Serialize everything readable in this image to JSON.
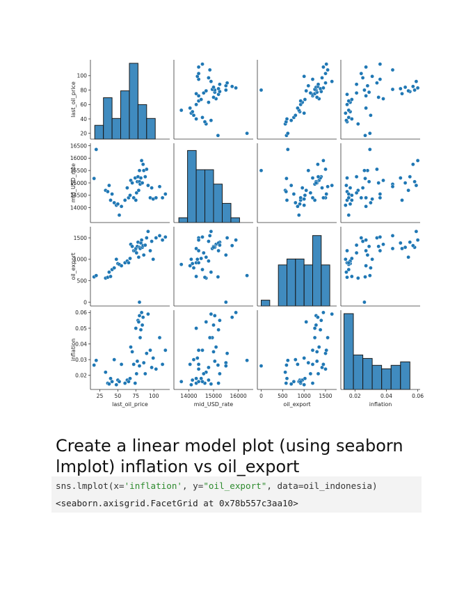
{
  "chart_data": {
    "type": "scatter",
    "variables": [
      "last_oil_price",
      "mid_USD_rate",
      "oil_export",
      "inflation"
    ],
    "axes": {
      "last_oil_price": {
        "range": [
          12,
          122
        ],
        "ticks": [
          20,
          40,
          60,
          80,
          100
        ],
        "bottom_ticks": [
          25,
          50,
          75,
          100
        ]
      },
      "mid_USD_rate": {
        "range": [
          13400,
          16600
        ],
        "ticks": [
          14000,
          14500,
          15000,
          15500,
          16000,
          16500
        ],
        "bottom_ticks": [
          14000,
          15000,
          16000
        ]
      },
      "oil_export": {
        "range": [
          -90,
          1760
        ],
        "ticks": [
          0,
          500,
          1000,
          1500
        ],
        "bottom_ticks": [
          0,
          500,
          1000,
          1500
        ]
      },
      "inflation": {
        "range": [
          0.011,
          0.0615
        ],
        "ticks": [
          0.02,
          0.03,
          0.04,
          0.05,
          0.06
        ],
        "bottom_ticks": [
          0.02,
          0.04,
          0.06
        ]
      }
    },
    "histograms": {
      "last_oil_price": {
        "edges": [
          18,
          30,
          42,
          54,
          66,
          78,
          90,
          102,
          114
        ],
        "counts": [
          2,
          6,
          3,
          7,
          11,
          5,
          3,
          0
        ],
        "ylim": [
          0,
          11.5
        ]
      },
      "mid_USD_rate": {
        "edges": [
          13600,
          13950,
          14300,
          14650,
          15000,
          15350,
          15700,
          16050,
          16400
        ],
        "counts": [
          1,
          15,
          11,
          11,
          8,
          4,
          1,
          0
        ],
        "ylim": [
          0,
          16.5
        ]
      },
      "oil_export": {
        "edges": [
          0,
          200,
          400,
          600,
          800,
          1000,
          1200,
          1400,
          1600
        ],
        "counts": [
          1,
          0,
          7,
          8,
          8,
          7,
          12,
          7
        ],
        "ylim": [
          0,
          13.5
        ]
      },
      "inflation": {
        "edges": [
          0.013,
          0.019,
          0.025,
          0.031,
          0.037,
          0.043,
          0.049,
          0.055,
          0.061
        ],
        "counts": [
          11,
          5,
          4.5,
          3.5,
          3,
          3.5,
          4,
          0
        ],
        "ylim": [
          0,
          11.5
        ]
      }
    },
    "points": [
      [
        17,
        15180,
        590,
        0.0265
      ],
      [
        20,
        16350,
        620,
        0.0295
      ],
      [
        33,
        14700,
        560,
        0.022
      ],
      [
        36,
        14650,
        580,
        0.015
      ],
      [
        38,
        14900,
        700,
        0.0145
      ],
      [
        40,
        14300,
        600,
        0.018
      ],
      [
        42,
        14550,
        760,
        0.016
      ],
      [
        45,
        14200,
        800,
        0.03
      ],
      [
        48,
        14100,
        1000,
        0.014
      ],
      [
        50,
        14150,
        900,
        0.017
      ],
      [
        52,
        13700,
        880,
        0.016
      ],
      [
        55,
        14050,
        850,
        0.027
      ],
      [
        60,
        14300,
        920,
        0.015
      ],
      [
        63,
        14800,
        960,
        0.017
      ],
      [
        65,
        14400,
        920,
        0.016
      ],
      [
        67,
        14500,
        1020,
        0.018
      ],
      [
        68,
        15100,
        1350,
        0.038
      ],
      [
        70,
        15000,
        1300,
        0.035
      ],
      [
        72,
        14400,
        1200,
        0.027
      ],
      [
        74,
        15200,
        1200,
        0.015
      ],
      [
        75,
        14300,
        1250,
        0.05
      ],
      [
        76,
        14600,
        1150,
        0.021
      ],
      [
        77,
        15050,
        1300,
        0.029
      ],
      [
        78,
        15250,
        1400,
        0.055
      ],
      [
        79,
        14700,
        1050,
        0.054
      ],
      [
        80,
        15050,
        1280,
        0.058
      ],
      [
        81,
        14950,
        1250,
        0.044
      ],
      [
        82,
        15200,
        1380,
        0.049
      ],
      [
        83,
        15900,
        1450,
        0.06
      ],
      [
        84,
        15000,
        1280,
        0.052
      ],
      [
        85,
        15750,
        1320,
        0.057
      ],
      [
        86,
        15500,
        1100,
        0.028
      ],
      [
        88,
        15250,
        1330,
        0.021
      ],
      [
        90,
        15550,
        1500,
        0.034
      ],
      [
        92,
        14900,
        1650,
        0.059
      ],
      [
        95,
        14400,
        1200,
        0.036
      ],
      [
        97,
        14800,
        1420,
        0.025
      ],
      [
        99,
        14350,
        1000,
        0.031
      ],
      [
        103,
        14400,
        1500,
        0.024
      ],
      [
        108,
        14850,
        1550,
        0.044
      ],
      [
        112,
        14400,
        1450,
        0.027
      ],
      [
        116,
        14550,
        1520,
        0.036
      ],
      [
        80,
        15500,
        0,
        0.026
      ]
    ]
  },
  "notebook": {
    "heading": "Create a linear model plot (using seaborn lmplot) inflation vs oil_export",
    "code": {
      "prefix": "sns.lmplot(x=",
      "arg1": "'inflation'",
      "mid": ", y=",
      "arg2": "\"oil_export\"",
      "suffix": ", data=oil_indonesia)"
    },
    "output": "<seaborn.axisgrid.FacetGrid at 0x78b557c3aa10>"
  },
  "colors": {
    "marker": "#1f77b4",
    "bar_edge": "#1a1a1a",
    "code_bg": "#f3f3f3",
    "string_token": "#2e8b2e"
  }
}
